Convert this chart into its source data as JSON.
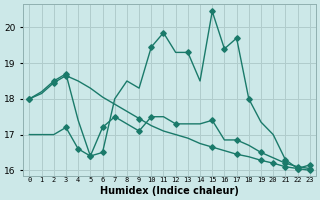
{
  "x": [
    0,
    1,
    2,
    3,
    4,
    5,
    6,
    7,
    8,
    9,
    10,
    11,
    12,
    13,
    14,
    15,
    16,
    17,
    18,
    19,
    20,
    21,
    22,
    23
  ],
  "line_smooth": [
    18.0,
    18.15,
    18.45,
    18.65,
    18.5,
    18.3,
    18.05,
    17.85,
    17.65,
    17.45,
    17.25,
    17.1,
    17.0,
    16.9,
    16.75,
    16.65,
    16.55,
    16.45,
    16.38,
    16.28,
    16.2,
    16.1,
    16.05,
    16.0
  ],
  "line_low": [
    17.0,
    17.0,
    17.0,
    17.2,
    16.6,
    16.4,
    17.2,
    17.5,
    17.3,
    17.1,
    17.5,
    17.5,
    17.3,
    17.3,
    17.3,
    17.4,
    16.85,
    16.85,
    16.7,
    16.5,
    16.35,
    16.2,
    16.1,
    16.05
  ],
  "line_high": [
    18.0,
    18.2,
    18.5,
    18.7,
    17.4,
    16.4,
    16.5,
    18.0,
    18.5,
    18.3,
    19.45,
    19.85,
    19.3,
    19.3,
    18.5,
    20.45,
    19.4,
    19.7,
    18.0,
    17.35,
    17.0,
    16.3,
    16.05,
    16.15
  ],
  "color": "#1a7a6a",
  "bg_color": "#cce8e8",
  "grid_color": "#b0cccc",
  "xlabel": "Humidex (Indice chaleur)",
  "xtick_labels": [
    "0",
    "1",
    "2",
    "3",
    "4",
    "5",
    "6",
    "7",
    "8",
    "9",
    "10",
    "11",
    "12",
    "13",
    "14",
    "15",
    "16",
    "17",
    "18",
    "19",
    "20",
    "21",
    "22",
    "23"
  ],
  "ylim": [
    15.85,
    20.65
  ],
  "xlim": [
    -0.5,
    23.5
  ],
  "yticks": [
    16,
    17,
    18,
    19,
    20
  ],
  "markersize": 2.8,
  "linewidth": 1.0,
  "marker_smooth": [
    0,
    2,
    3,
    9,
    15,
    17,
    19,
    20,
    21,
    22,
    23
  ],
  "marker_low": [
    3,
    4,
    5,
    6,
    7,
    9,
    10,
    12,
    15,
    17,
    19,
    21,
    22,
    23
  ],
  "marker_high": [
    0,
    2,
    3,
    5,
    6,
    10,
    11,
    13,
    15,
    16,
    17,
    18,
    21,
    22,
    23
  ]
}
